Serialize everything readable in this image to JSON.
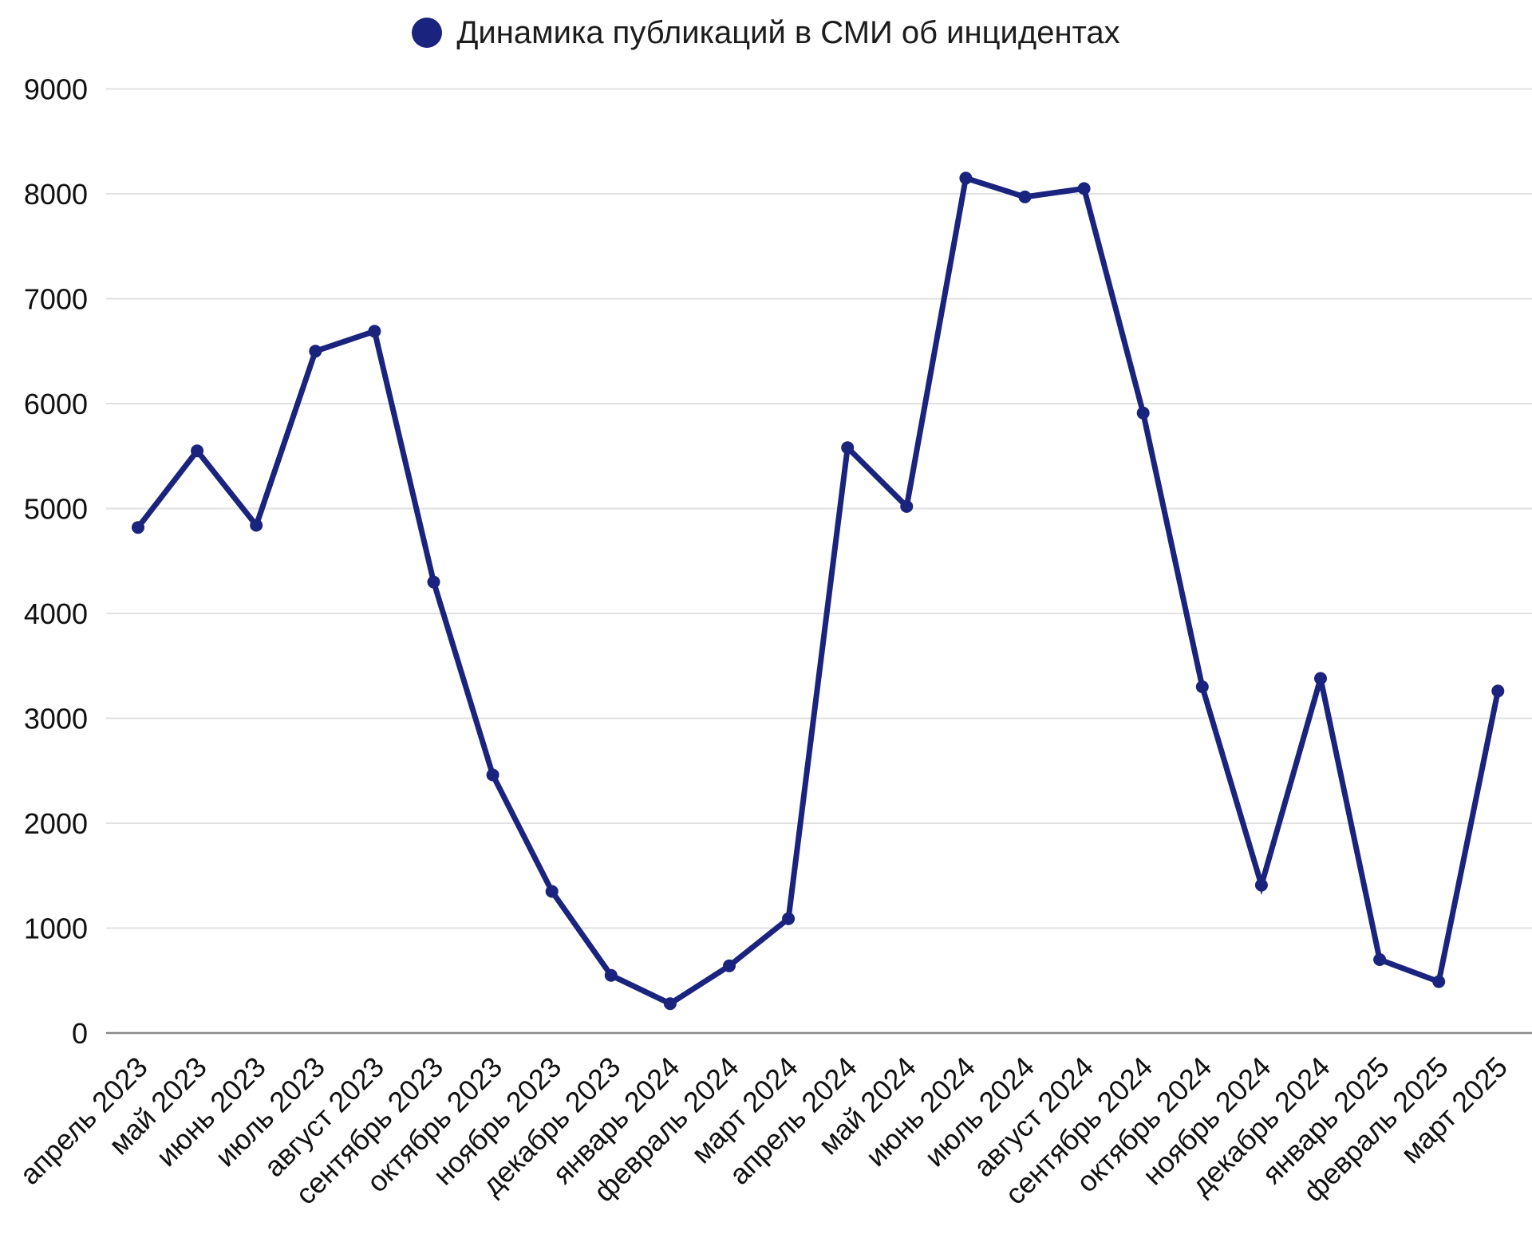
{
  "chart_data": {
    "type": "line",
    "title": "Динамика публикаций в СМИ об инцидентах",
    "legend_position": "top-center",
    "grid": "horizontal",
    "categories": [
      "апрель 2023",
      "май 2023",
      "июнь 2023",
      "июль 2023",
      "август 2023",
      "сентябрь 2023",
      "октябрь 2023",
      "ноябрь 2023",
      "декабрь 2023",
      "январь 2024",
      "февраль 2024",
      "март 2024",
      "апрель 2024",
      "май 2024",
      "июнь 2024",
      "июль 2024",
      "август 2024",
      "сентябрь 2024",
      "октябрь 2024",
      "ноябрь 2024",
      "декабрь 2024",
      "январь 2025",
      "февраль 2025",
      "март 2025"
    ],
    "values": [
      4820,
      5550,
      4840,
      6500,
      6690,
      4300,
      2460,
      1350,
      550,
      280,
      640,
      1090,
      5580,
      5020,
      8150,
      7970,
      8050,
      5910,
      3300,
      1410,
      3380,
      700,
      490,
      3260
    ],
    "xlabel": "",
    "ylabel": "",
    "ylim": [
      0,
      9000
    ],
    "ytick_step": 1000,
    "yticks": [
      0,
      1000,
      2000,
      3000,
      4000,
      5000,
      6000,
      7000,
      8000,
      9000
    ],
    "ytick_labels": [
      "0",
      "1000",
      "2000",
      "3000",
      "4000",
      "5000",
      "6000",
      "7000",
      "8000",
      "9000"
    ],
    "colors": {
      "line": "#1a237e",
      "marker": "#1a237e",
      "grid": "#e2e2e2",
      "axis": "#8a8a8a",
      "text": "#111111"
    }
  }
}
